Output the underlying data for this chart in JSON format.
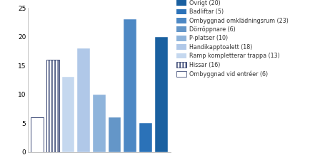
{
  "values": [
    6,
    16,
    13,
    18,
    10,
    6,
    23,
    5,
    20
  ],
  "bar_colors_map": [
    {
      "color": "white",
      "edgecolor": "#1a2a5e",
      "hatch": "===="
    },
    {
      "color": "white",
      "edgecolor": "#1a2a5e",
      "hatch": "||||"
    },
    {
      "color": "#c5d8ef",
      "edgecolor": null,
      "hatch": null
    },
    {
      "color": "#b0c8e8",
      "edgecolor": null,
      "hatch": null
    },
    {
      "color": "#8fb4db",
      "edgecolor": null,
      "hatch": null
    },
    {
      "color": "#6496c8",
      "edgecolor": null,
      "hatch": null
    },
    {
      "color": "#4d88c4",
      "edgecolor": null,
      "hatch": null
    },
    {
      "color": "#2b72b8",
      "edgecolor": null,
      "hatch": null
    },
    {
      "color": "#1a60a0",
      "edgecolor": null,
      "hatch": null
    }
  ],
  "legend_items": [
    {
      "label": "Övrigt (20)",
      "color": "#1a60a0",
      "pattern": null
    },
    {
      "label": "Badliftar (5)",
      "color": "#2b72b8",
      "pattern": null
    },
    {
      "label": "Ombyggnad omklädningsrum (23)",
      "color": "#4d88c4",
      "pattern": null
    },
    {
      "label": "Dörröppnare (6)",
      "color": "#6496c8",
      "pattern": null
    },
    {
      "label": "P-platser (10)",
      "color": "#8fb4db",
      "pattern": null
    },
    {
      "label": "Handikapptoalett (18)",
      "color": "#b0c8e8",
      "pattern": null
    },
    {
      "label": "Ramp kompletterar trappa (13)",
      "color": "#c5d8ef",
      "pattern": null
    },
    {
      "label": "Hissar (16)",
      "color": "white",
      "edgecolor": "#1a2a5e",
      "pattern": "||||"
    },
    {
      "label": "Ombyggnad vid entréer (6)",
      "color": "white",
      "edgecolor": "#1a2a5e",
      "pattern": "===="
    }
  ],
  "ylim": [
    0,
    25
  ],
  "yticks": [
    0,
    5,
    10,
    15,
    20,
    25
  ],
  "background_color": "#ffffff"
}
